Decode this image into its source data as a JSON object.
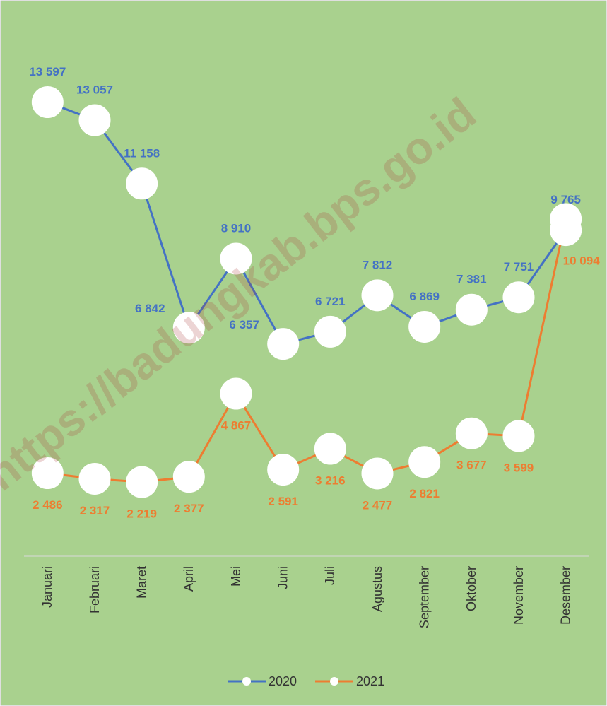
{
  "chart_data": {
    "type": "line",
    "watermark": "https://badungkab.bps.go.id",
    "categories": [
      "Januari",
      "Februari",
      "Maret",
      "April",
      "Mei",
      "Juni",
      "Juli",
      "Agustus",
      "September",
      "Oktober",
      "November",
      "Desember"
    ],
    "series": [
      {
        "name": "2020",
        "color": "#4472c4",
        "values": [
          13597,
          13057,
          11158,
          6842,
          8910,
          6357,
          6721,
          7812,
          6869,
          7381,
          7751,
          9765
        ],
        "value_labels": [
          "13 597",
          "13 057",
          "11 158",
          "6 842",
          "8 910",
          "6 357",
          "6 721",
          "7 812",
          "6 869",
          "7 381",
          "7 751",
          "9 765"
        ]
      },
      {
        "name": "2021",
        "color": "#ed7d31",
        "values": [
          2486,
          2317,
          2219,
          2377,
          4867,
          2591,
          3216,
          2477,
          2821,
          3677,
          3599,
          10094
        ],
        "value_labels": [
          "2 486",
          "2 317",
          "2 219",
          "2 377",
          "4 867",
          "2 591",
          "3 216",
          "2 477",
          "2 821",
          "3 677",
          "3 599",
          "10 094"
        ]
      }
    ],
    "ylim": [
      0,
      16000
    ],
    "legend": "bottom",
    "background": "#a9d18e"
  }
}
